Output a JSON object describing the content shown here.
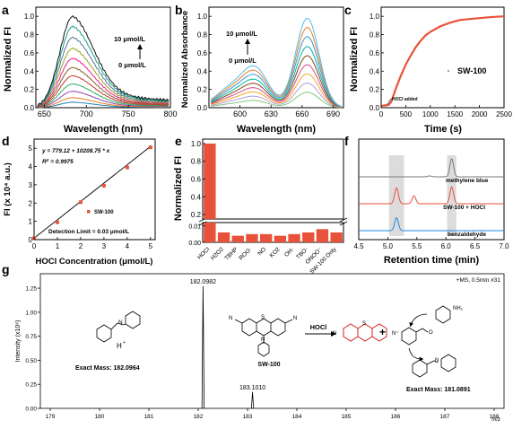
{
  "chart_data": [
    {
      "panel": "a",
      "type": "line",
      "xlabel": "Wavelength (nm)",
      "ylabel": "Normalized FI",
      "xlim": [
        640,
        800
      ],
      "ylim": [
        0,
        1.1
      ],
      "x_ticks": [
        "650",
        "700",
        "750",
        "800"
      ],
      "y_ticks": [
        "0.0",
        "0.2",
        "0.4",
        "0.6",
        "0.8",
        "1.0"
      ],
      "annotations": [
        "10 μmol/L",
        "0 μmol/L"
      ],
      "peak_wavelength": 684,
      "series": [
        {
          "color": "#1f7fb3",
          "peak": 0.06
        },
        {
          "color": "#e67e22",
          "peak": 0.11
        },
        {
          "color": "#8e44ad",
          "peak": 0.18
        },
        {
          "color": "#27ae60",
          "peak": 0.26
        },
        {
          "color": "#c0392b",
          "peak": 0.35
        },
        {
          "color": "#8b5a2b",
          "peak": 0.44
        },
        {
          "color": "#e91e8c",
          "peak": 0.54
        },
        {
          "color": "#9aa31e",
          "peak": 0.65
        },
        {
          "color": "#5b6f9e",
          "peak": 0.77
        },
        {
          "color": "#16a085",
          "peak": 0.89
        },
        {
          "color": "#111111",
          "peak": 1.0
        }
      ]
    },
    {
      "panel": "b",
      "type": "line",
      "xlabel": "Wavelength (nm)",
      "ylabel": "Normalized Absorbance",
      "xlim": [
        570,
        700
      ],
      "ylim": [
        0,
        1.1
      ],
      "x_ticks": [
        "600",
        "630",
        "660",
        "690"
      ],
      "y_ticks": [
        "0.0",
        "0.2",
        "0.4",
        "0.6",
        "0.8",
        "1.0"
      ],
      "annotations": [
        "10 μmol/L",
        "0 μmol/L"
      ],
      "peak_wavelength": 665,
      "shoulder_wavelength": 615,
      "series": [
        {
          "color": "#7fc97f",
          "peak": 0.17
        },
        {
          "color": "#b39ddb",
          "peak": 0.27
        },
        {
          "color": "#f6a623",
          "peak": 0.37
        },
        {
          "color": "#d45087",
          "peak": 0.47
        },
        {
          "color": "#8b4513",
          "peak": 0.57
        },
        {
          "color": "#00b3a4",
          "peak": 0.67
        },
        {
          "color": "#3498db",
          "peak": 0.78
        },
        {
          "color": "#e67e22",
          "peak": 0.88
        },
        {
          "color": "#55b7e8",
          "peak": 0.98
        }
      ]
    },
    {
      "panel": "c",
      "type": "line",
      "xlabel": "Time (s)",
      "ylabel": "Normalized FI",
      "xlim": [
        0,
        2500
      ],
      "ylim": [
        0,
        1.1
      ],
      "x_ticks": [
        "0",
        "500",
        "1000",
        "1500",
        "2000",
        "2500"
      ],
      "y_ticks": [
        "0.0",
        "0.2",
        "0.4",
        "0.6",
        "0.8",
        "1.0"
      ],
      "legend": "SW-100",
      "annotation": "HOCl added",
      "x": [
        0,
        150,
        200,
        300,
        400,
        500,
        600,
        700,
        800,
        900,
        1000,
        1200,
        1400,
        1600,
        1800,
        2000,
        2200,
        2500
      ],
      "y": [
        0.02,
        0.03,
        0.06,
        0.21,
        0.35,
        0.47,
        0.57,
        0.66,
        0.73,
        0.79,
        0.83,
        0.89,
        0.93,
        0.96,
        0.97,
        0.98,
        0.99,
        1.0
      ]
    },
    {
      "panel": "d",
      "type": "scatter",
      "xlabel": "HOCl Concentration (μmol/L)",
      "ylabel": "FI (x 10⁴ a.u.)",
      "xlim": [
        0,
        5.2
      ],
      "ylim": [
        0,
        5.5
      ],
      "x_ticks": [
        "0",
        "1",
        "2",
        "3",
        "4",
        "5"
      ],
      "y_ticks": [
        "0",
        "1",
        "2",
        "3",
        "4",
        "5"
      ],
      "equation": "y = 779.12 + 10208.75 * x",
      "r2_label": "R",
      "r2_value": "= 0.9975",
      "legend": "SW-100",
      "detection_limit": "Detection Limit = 0.03 μmol/L",
      "x": [
        0,
        1,
        2,
        3,
        4,
        5
      ],
      "y": [
        0.08,
        0.95,
        2.05,
        2.95,
        3.95,
        5.05
      ]
    },
    {
      "panel": "e",
      "type": "bar",
      "ylabel": "Normalized FI",
      "categories": [
        "HOCl",
        "H2O2",
        "TBHP",
        "ROO·",
        "NO",
        "KO2",
        "OH·",
        "TBO·",
        "ONOO⁻",
        "SW-100 Only"
      ],
      "values": [
        1.0,
        0.006,
        0.004,
        0.005,
        0.005,
        0.004,
        0.005,
        0.006,
        0.008,
        0.006
      ],
      "y_ticks_upper": [
        "0.2",
        "0.4",
        "0.6",
        "0.8",
        "1.0"
      ],
      "y_ticks_lower": [
        "0.00",
        "0.01"
      ],
      "axis_break": true
    },
    {
      "panel": "f",
      "type": "line",
      "xlabel": "Retention time (min)",
      "xlim": [
        4.5,
        7.0
      ],
      "x_ticks": [
        "4.5",
        "5.0",
        "5.5",
        "6.0",
        "6.5",
        "7.0"
      ],
      "series": [
        {
          "name": "methylene blue",
          "color": "#777777",
          "peaks": [
            [
              6.1,
              1.0
            ],
            [
              5.72,
              0.05
            ]
          ]
        },
        {
          "name": "SW-100 + HOCl",
          "color": "#e8523b",
          "peaks": [
            [
              5.15,
              0.8
            ],
            [
              5.45,
              0.4
            ],
            [
              6.1,
              0.85
            ]
          ]
        },
        {
          "name": "benzaldehyde",
          "color": "#1e88e5",
          "peaks": [
            [
              5.15,
              0.9
            ]
          ]
        }
      ],
      "highlight_bands": [
        [
          5.02,
          5.28
        ],
        [
          6.02,
          6.18
        ]
      ]
    },
    {
      "panel": "g",
      "type": "bar",
      "subtype": "mass spectrum",
      "xlabel": "m/z",
      "ylabel": "Intensity (x10⁶)",
      "header": "+MS, 0.5min #31",
      "xlim": [
        178.8,
        188.2
      ],
      "ylim": [
        0,
        1.4
      ],
      "x_ticks": [
        "179",
        "180",
        "181",
        "182",
        "183",
        "184",
        "185",
        "186",
        "187",
        "188"
      ],
      "y_ticks": [
        "0.00",
        "0.25",
        "0.50",
        "0.75",
        "1.00",
        "1.25"
      ],
      "peaks": [
        [
          182.0982,
          1.27
        ],
        [
          183.101,
          0.17
        ]
      ],
      "peak_labels": [
        "182.0982",
        "183.1010"
      ],
      "annotations": {
        "left_exact_mass": "Exact Mass: 182.0964",
        "right_exact_mass": "Exact Mass: 181.0891",
        "probe_name": "SW-100",
        "reagent": "HOCl"
      }
    }
  ],
  "labels": {
    "a": "a",
    "b": "b",
    "c": "c",
    "d": "d",
    "e": "e",
    "f": "f",
    "g": "g"
  }
}
